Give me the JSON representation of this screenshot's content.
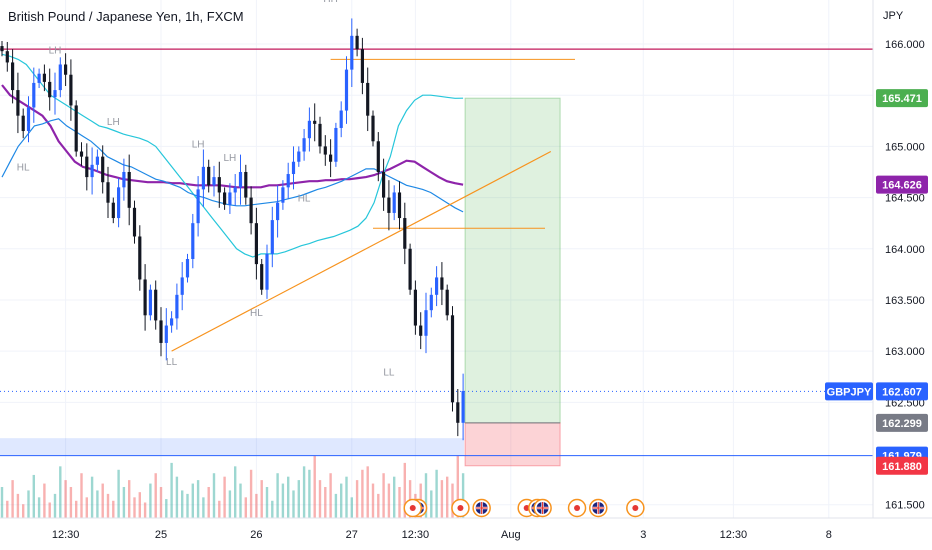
{
  "header": {
    "title": "British Pound / Japanese Yen, 1h, FXCM"
  },
  "axis": {
    "currency": "JPY"
  },
  "chart_data": {
    "type": "candlestick",
    "symbol": "GBPJPY",
    "title": "British Pound / Japanese Yen, 1h, FXCM",
    "ylim": [
      161.37,
      166.43
    ],
    "y_ticks": [
      "166.000",
      "165.500",
      "165.000",
      "164.500",
      "164.000",
      "163.500",
      "163.000",
      "162.500",
      "161.500"
    ],
    "y_tick_values": [
      166.0,
      165.5,
      165.0,
      164.5,
      164.0,
      163.5,
      163.0,
      162.5,
      161.5
    ],
    "x_ticks": [
      "12:30",
      "25",
      "26",
      "27",
      "12:30",
      "Aug",
      "3",
      "12:30",
      "8"
    ],
    "x_tick_bars": [
      12,
      30,
      48,
      66,
      78,
      96,
      121,
      138,
      156
    ],
    "grid": true,
    "close_series": [
      165.93,
      165.82,
      165.55,
      165.3,
      165.15,
      165.38,
      165.62,
      165.71,
      165.63,
      165.48,
      165.55,
      165.8,
      165.7,
      165.4,
      164.95,
      164.9,
      164.7,
      164.82,
      164.9,
      164.65,
      164.45,
      164.3,
      164.6,
      164.75,
      164.4,
      164.12,
      163.7,
      163.35,
      163.6,
      163.3,
      163.08,
      163.25,
      163.32,
      163.55,
      163.72,
      163.9,
      164.25,
      164.58,
      164.8,
      164.62,
      164.7,
      164.55,
      164.43,
      164.55,
      164.6,
      164.75,
      164.5,
      164.25,
      163.85,
      163.6,
      163.95,
      164.28,
      164.45,
      164.6,
      164.73,
      164.85,
      164.95,
      165.08,
      165.25,
      165.22,
      165.0,
      164.92,
      164.85,
      165.18,
      165.35,
      165.75,
      166.08,
      165.95,
      165.62,
      165.3,
      165.05,
      164.75,
      164.5,
      164.35,
      164.55,
      164.3,
      164.0,
      163.6,
      163.25,
      163.15,
      163.4,
      163.55,
      163.72,
      163.6,
      163.35,
      162.5,
      162.3,
      162.61
    ],
    "volume_series": [
      18,
      10,
      22,
      14,
      8,
      16,
      25,
      12,
      20,
      9,
      14,
      30,
      22,
      18,
      10,
      26,
      12,
      24,
      16,
      20,
      14,
      10,
      28,
      18,
      22,
      12,
      15,
      9,
      20,
      26,
      18,
      11,
      32,
      24,
      16,
      14,
      20,
      22,
      12,
      18,
      26,
      10,
      24,
      16,
      30,
      20,
      12,
      28,
      14,
      22,
      18,
      10,
      26,
      20,
      24,
      16,
      22,
      30,
      28,
      36,
      22,
      18,
      26,
      14,
      20,
      24,
      12,
      22,
      28,
      30,
      20,
      14,
      26,
      20,
      24,
      18,
      32,
      22,
      14,
      20,
      26,
      16,
      28,
      22,
      24,
      20,
      36,
      26
    ],
    "lines": [
      {
        "name": "resistance",
        "y": 165.95,
        "color": "#c2185b"
      },
      {
        "name": "tp-level-line",
        "y": 165.85,
        "color": "#f7931e"
      },
      {
        "name": "mid-level-line",
        "y": 164.2,
        "color": "#f7931e"
      },
      {
        "name": "last-price-line",
        "y": 162.607,
        "color": "#2962ff"
      },
      {
        "name": "support-line",
        "y": 161.979,
        "color": "#2962ff"
      }
    ],
    "trendline": {
      "from": [
        32,
        163.0
      ],
      "to": [
        96,
        164.95
      ],
      "color": "#f7931e"
    },
    "demand_zone": {
      "top": 162.15,
      "bottom": 161.979
    },
    "position": {
      "entry": 162.299,
      "target": 165.471,
      "stop": 161.88
    },
    "moving_averages": [
      {
        "name": "ma-purple",
        "color": "#8e24aa",
        "values": [
          165.6,
          165.5,
          165.45,
          165.4,
          165.35,
          165.3,
          165.2,
          165.05,
          164.95,
          164.85,
          164.8,
          164.78,
          164.75,
          164.72,
          164.7,
          164.68,
          164.67,
          164.66,
          164.65,
          164.65,
          164.65,
          164.64,
          164.64,
          164.63,
          164.62,
          164.62,
          164.62,
          164.62,
          164.61,
          164.6,
          164.6,
          164.6,
          164.6,
          164.62,
          164.62,
          164.63,
          164.64,
          164.65,
          164.66,
          164.66,
          164.67,
          164.67,
          164.68,
          164.68,
          164.69,
          164.7,
          164.72,
          164.75,
          164.78,
          164.82,
          164.86,
          164.85,
          164.8,
          164.75,
          164.7,
          164.66,
          164.64,
          164.626
        ]
      },
      {
        "name": "ma-teal",
        "color": "#26c6da",
        "values": [
          165.9,
          165.88,
          165.85,
          165.8,
          165.7,
          165.6,
          165.5,
          165.45,
          165.4,
          165.35,
          165.3,
          165.25,
          165.2,
          165.18,
          165.15,
          165.12,
          165.1,
          165.08,
          165.05,
          165.0,
          164.9,
          164.8,
          164.7,
          164.6,
          164.5,
          164.4,
          164.3,
          164.2,
          164.1,
          164.0,
          163.95,
          163.92,
          163.95,
          163.95,
          163.95,
          163.97,
          164.0,
          164.03,
          164.05,
          164.08,
          164.1,
          164.12,
          164.15,
          164.18,
          164.22,
          164.3,
          164.45,
          164.7,
          164.9,
          165.2,
          165.35,
          165.45,
          165.5,
          165.5,
          165.49,
          165.48,
          165.47,
          165.471
        ]
      },
      {
        "name": "ma-blue",
        "color": "#1e88e5",
        "values": [
          164.7,
          164.85,
          165.0,
          165.1,
          165.2,
          165.22,
          165.25,
          165.27,
          165.2,
          165.15,
          165.1,
          165.05,
          164.98,
          164.9,
          164.86,
          164.82,
          164.8,
          164.76,
          164.72,
          164.68,
          164.66,
          164.63,
          164.6,
          164.55,
          164.52,
          164.5,
          164.47,
          164.45,
          164.43,
          164.42,
          164.42,
          164.43,
          164.44,
          164.45,
          164.46,
          164.48,
          164.5,
          164.52,
          164.55,
          164.58,
          164.6,
          164.63,
          164.66,
          164.7,
          164.74,
          164.78,
          164.78,
          164.74,
          164.7,
          164.66,
          164.62,
          164.6,
          164.58,
          164.55,
          164.5,
          164.45,
          164.4,
          164.36
        ]
      }
    ],
    "pivots": [
      {
        "label": "HL",
        "bar": 4,
        "price": 164.9,
        "pos": "below"
      },
      {
        "label": "LH",
        "bar": 10,
        "price": 165.85,
        "pos": "above"
      },
      {
        "label": "LH",
        "bar": 21,
        "price": 165.15,
        "pos": "above"
      },
      {
        "label": "LL",
        "bar": 32,
        "price": 163.0,
        "pos": "below"
      },
      {
        "label": "LH",
        "bar": 37,
        "price": 164.93,
        "pos": "above"
      },
      {
        "label": "LH",
        "bar": 43,
        "price": 164.8,
        "pos": "above"
      },
      {
        "label": "HL",
        "bar": 48,
        "price": 163.48,
        "pos": "below"
      },
      {
        "label": "HL",
        "bar": 57,
        "price": 164.6,
        "pos": "below"
      },
      {
        "label": "HH",
        "bar": 62,
        "price": 166.35,
        "pos": "above"
      },
      {
        "label": "LL",
        "bar": 73,
        "price": 162.9,
        "pos": "below"
      }
    ],
    "price_labels": [
      {
        "name": "target-price-label",
        "text": "165.471",
        "price": 165.471,
        "color": "#4caf50"
      },
      {
        "name": "ma-price-label",
        "text": "164.626",
        "price": 164.626,
        "color": "#8e24aa"
      },
      {
        "name": "last-price-label",
        "text": "162.607",
        "price": 162.607,
        "color": "#2962ff"
      },
      {
        "name": "entry-price-label",
        "text": "162.299",
        "price": 162.299,
        "color": "#787b86"
      },
      {
        "name": "support-price-label",
        "text": "161.979",
        "price": 161.979,
        "color": "#2962ff"
      },
      {
        "name": "stop-price-label",
        "text": "161.880",
        "price": 161.88,
        "color": "#f23645"
      }
    ],
    "events": [
      {
        "kind": "flag-uk",
        "bar": 78.5
      },
      {
        "kind": "dot-red",
        "bar": 77.5
      },
      {
        "kind": "dot-red",
        "bar": 86.5
      },
      {
        "kind": "flag-uk",
        "bar": 90.5
      },
      {
        "kind": "dot-red",
        "bar": 99
      },
      {
        "kind": "flag-uk",
        "bar": 101
      },
      {
        "kind": "flag-uk",
        "bar": 102
      },
      {
        "kind": "dot-red",
        "bar": 108.5
      },
      {
        "kind": "flag-uk",
        "bar": 112.5
      },
      {
        "kind": "dot-red",
        "bar": 119.5
      }
    ]
  }
}
